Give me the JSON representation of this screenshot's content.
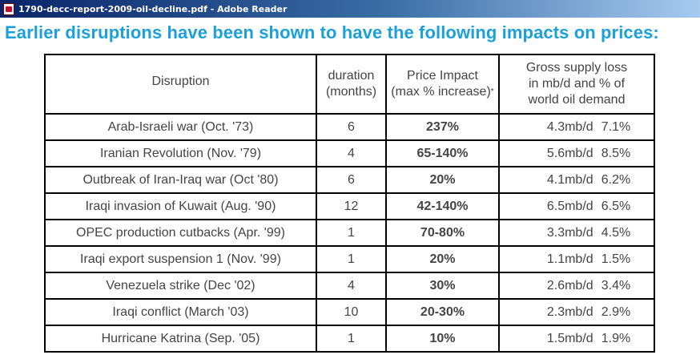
{
  "window": {
    "title": "1790-decc-report-2009-oil-decline.pdf - Adobe Reader",
    "app_icon": "pdf-document-icon"
  },
  "document": {
    "heading": "Earlier disruptions have been shown to have the following impacts on prices:",
    "table": {
      "headers": {
        "disruption": "Disruption",
        "duration_line1": "duration",
        "duration_line2": "(months)",
        "impact_line1": "Price Impact",
        "impact_line2": "(max % increase)",
        "impact_note": "*",
        "supply_line1": "Gross supply loss",
        "supply_line2": "in mb/d and % of",
        "supply_line3": "world oil demand"
      },
      "rows": [
        {
          "disruption": "Arab-Israeli war (Oct. '73)",
          "duration": "6",
          "impact": "237%",
          "supply_mbd": "4.3mb/d",
          "supply_pct": "7.1%"
        },
        {
          "disruption": "Iranian Revolution (Nov. '79)",
          "duration": "4",
          "impact": "65-140%",
          "supply_mbd": "5.6mb/d",
          "supply_pct": "8.5%"
        },
        {
          "disruption": "Outbreak of Iran-Iraq war (Oct '80)",
          "duration": "6",
          "impact": "20%",
          "supply_mbd": "4.1mb/d",
          "supply_pct": "6.2%"
        },
        {
          "disruption": "Iraqi invasion of Kuwait (Aug. '90)",
          "duration": "12",
          "impact": "42-140%",
          "supply_mbd": "6.5mb/d",
          "supply_pct": "6.5%"
        },
        {
          "disruption": "OPEC production cutbacks (Apr. '99)",
          "duration": "1",
          "impact": "70-80%",
          "supply_mbd": "3.3mb/d",
          "supply_pct": "4.5%"
        },
        {
          "disruption": "Iraqi export suspension 1 (Nov. '99)",
          "duration": "1",
          "impact": "20%",
          "supply_mbd": "1.1mb/d",
          "supply_pct": "1.5%"
        },
        {
          "disruption": "Venezuela strike (Dec '02)",
          "duration": "4",
          "impact": "30%",
          "supply_mbd": "2.6mb/d",
          "supply_pct": "3.4%"
        },
        {
          "disruption": "Iraqi conflict (March '03)",
          "duration": "10",
          "impact": "20-30%",
          "supply_mbd": "2.3mb/d",
          "supply_pct": "2.9%"
        },
        {
          "disruption": "Hurricane Katrina (Sep. '05)",
          "duration": "1",
          "impact": "10%",
          "supply_mbd": "1.5mb/d",
          "supply_pct": "1.9%"
        }
      ]
    }
  },
  "colors": {
    "heading": "#1aa0dd",
    "table_text": "#444444",
    "titlebar_start": "#0a246a",
    "titlebar_end": "#a6caf0"
  }
}
